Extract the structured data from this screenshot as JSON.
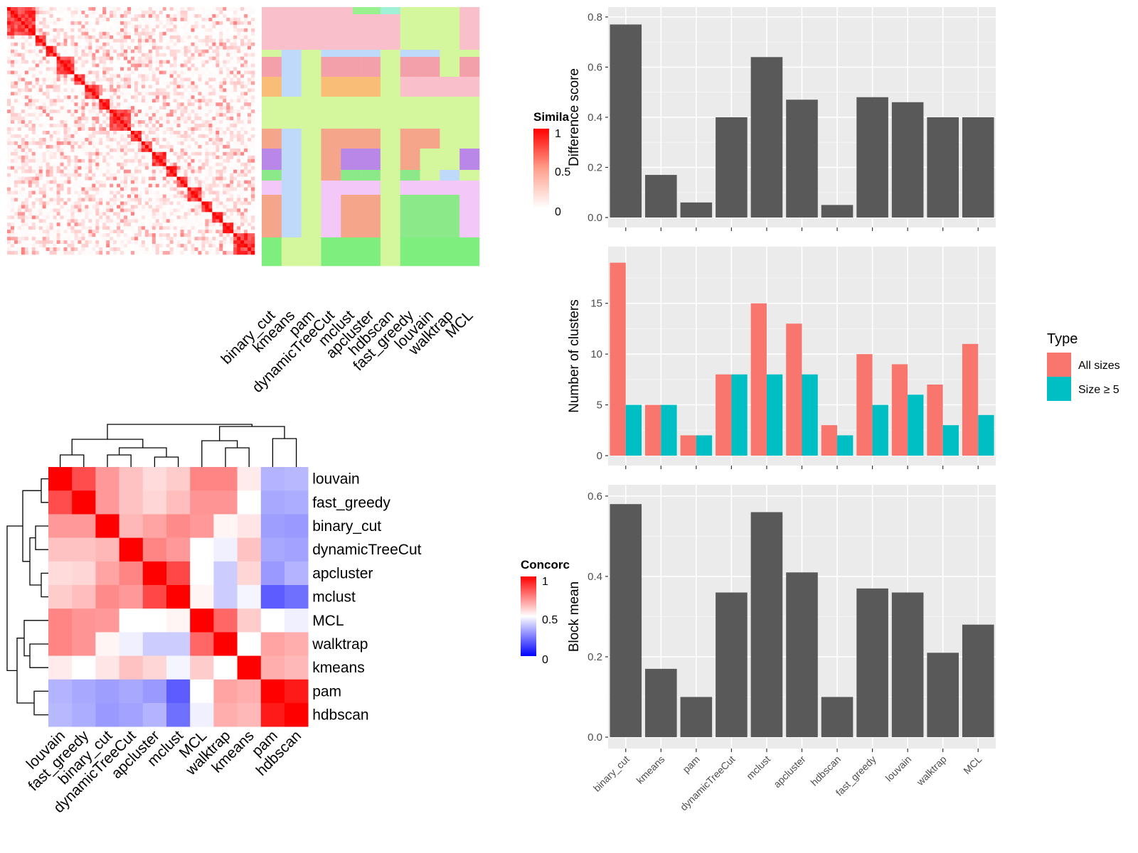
{
  "methods": [
    "binary_cut",
    "kmeans",
    "pam",
    "dynamicTreeCut",
    "mclust",
    "apcluster",
    "hdbscan",
    "fast_greedy",
    "louvain",
    "walktrap",
    "MCL"
  ],
  "similarity_panel": {
    "legend_title": "Simila",
    "legend_ticks": [
      "1",
      "0.5",
      "0"
    ]
  },
  "concordance_panel": {
    "legend_title": "Concorc",
    "legend_ticks": [
      "1",
      "0.5",
      "0"
    ],
    "order": [
      "louvain",
      "fast_greedy",
      "binary_cut",
      "dynamicTreeCut",
      "apcluster",
      "mclust",
      "MCL",
      "walktrap",
      "kmeans",
      "pam",
      "hdbscan"
    ]
  },
  "colors": {
    "bar": "#595959",
    "all_sizes": "#F8766D",
    "size5": "#00BFC4",
    "panel_bg": "#EBEBEB",
    "heat_high": "#FF0000",
    "heat_low": "#0000FF"
  },
  "chart_data": [
    {
      "type": "bar",
      "ylabel": "Difference score",
      "ylim": [
        0,
        0.8
      ],
      "yticks": [
        "0.0",
        "0.2",
        "0.4",
        "0.6",
        "0.8"
      ],
      "categories": [
        "binary_cut",
        "kmeans",
        "pam",
        "dynamicTreeCut",
        "mclust",
        "apcluster",
        "hdbscan",
        "fast_greedy",
        "louvain",
        "walktrap",
        "MCL"
      ],
      "values": [
        0.77,
        0.17,
        0.06,
        0.4,
        0.64,
        0.47,
        0.05,
        0.48,
        0.46,
        0.4,
        0.4
      ]
    },
    {
      "type": "bar",
      "ylabel": "Number of clusters",
      "ylim": [
        0,
        20
      ],
      "yticks": [
        "0",
        "5",
        "10",
        "15"
      ],
      "categories": [
        "binary_cut",
        "kmeans",
        "pam",
        "dynamicTreeCut",
        "mclust",
        "apcluster",
        "hdbscan",
        "fast_greedy",
        "louvain",
        "walktrap",
        "MCL"
      ],
      "legend_title": "Type",
      "series": [
        {
          "name": "All sizes",
          "values": [
            19,
            5,
            2,
            8,
            15,
            13,
            3,
            10,
            9,
            7,
            11
          ]
        },
        {
          "name": "Size ≥ 5",
          "values": [
            5,
            5,
            2,
            8,
            8,
            8,
            2,
            5,
            6,
            3,
            4
          ]
        }
      ]
    },
    {
      "type": "bar",
      "ylabel": "Block mean",
      "ylim": [
        0,
        0.6
      ],
      "yticks": [
        "0.0",
        "0.2",
        "0.4",
        "0.6"
      ],
      "categories": [
        "binary_cut",
        "kmeans",
        "pam",
        "dynamicTreeCut",
        "mclust",
        "apcluster",
        "hdbscan",
        "fast_greedy",
        "louvain",
        "walktrap",
        "MCL"
      ],
      "values": [
        0.58,
        0.17,
        0.1,
        0.36,
        0.56,
        0.41,
        0.1,
        0.37,
        0.36,
        0.21,
        0.28
      ]
    },
    {
      "type": "heatmap",
      "title": "",
      "rows": [
        "louvain",
        "fast_greedy",
        "binary_cut",
        "dynamicTreeCut",
        "apcluster",
        "mclust",
        "MCL",
        "walktrap",
        "kmeans",
        "pam",
        "hdbscan"
      ],
      "cols": [
        "louvain",
        "fast_greedy",
        "binary_cut",
        "dynamicTreeCut",
        "apcluster",
        "mclust",
        "MCL",
        "walktrap",
        "kmeans",
        "pam",
        "hdbscan"
      ],
      "values": [
        [
          1.0,
          0.85,
          0.7,
          0.62,
          0.57,
          0.6,
          0.74,
          0.74,
          0.54,
          0.35,
          0.36
        ],
        [
          0.85,
          1.0,
          0.7,
          0.62,
          0.58,
          0.63,
          0.71,
          0.71,
          0.5,
          0.33,
          0.34
        ],
        [
          0.7,
          0.7,
          1.0,
          0.64,
          0.68,
          0.73,
          0.7,
          0.52,
          0.55,
          0.31,
          0.3
        ],
        [
          0.62,
          0.62,
          0.64,
          1.0,
          0.74,
          0.7,
          0.5,
          0.47,
          0.62,
          0.33,
          0.32
        ],
        [
          0.57,
          0.58,
          0.68,
          0.74,
          1.0,
          0.86,
          0.5,
          0.4,
          0.58,
          0.3,
          0.35
        ],
        [
          0.6,
          0.63,
          0.73,
          0.7,
          0.86,
          1.0,
          0.52,
          0.4,
          0.48,
          0.18,
          0.22
        ],
        [
          0.74,
          0.71,
          0.7,
          0.5,
          0.5,
          0.52,
          1.0,
          0.8,
          0.6,
          0.5,
          0.47
        ],
        [
          0.74,
          0.71,
          0.52,
          0.47,
          0.4,
          0.4,
          0.8,
          1.0,
          0.5,
          0.68,
          0.66
        ],
        [
          0.54,
          0.5,
          0.55,
          0.62,
          0.58,
          0.48,
          0.6,
          0.5,
          1.0,
          0.66,
          0.64
        ],
        [
          0.35,
          0.33,
          0.31,
          0.33,
          0.3,
          0.18,
          0.5,
          0.68,
          0.66,
          1.0,
          0.95
        ],
        [
          0.36,
          0.34,
          0.3,
          0.32,
          0.35,
          0.22,
          0.47,
          0.66,
          0.64,
          0.95,
          1.0
        ]
      ]
    }
  ]
}
